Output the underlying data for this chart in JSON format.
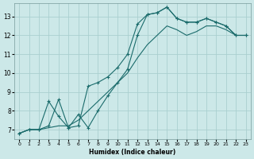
{
  "xlabel": "Humidex (Indice chaleur)",
  "bg_color": "#cce8e8",
  "grid_color": "#aacfcf",
  "line_color": "#1a6b6b",
  "xlim": [
    -0.5,
    23.5
  ],
  "ylim": [
    6.5,
    13.7
  ],
  "xticks": [
    0,
    1,
    2,
    3,
    4,
    5,
    6,
    7,
    8,
    9,
    10,
    11,
    12,
    13,
    14,
    15,
    16,
    17,
    18,
    19,
    20,
    21,
    22,
    23
  ],
  "yticks": [
    7,
    8,
    9,
    10,
    11,
    12,
    13
  ],
  "line1_x": [
    0,
    1,
    2,
    3,
    4,
    5,
    6,
    7,
    8,
    9,
    10,
    11,
    12,
    13,
    14,
    15,
    16,
    17,
    18,
    19,
    20,
    21,
    22,
    23
  ],
  "line1_y": [
    6.8,
    7.0,
    7.0,
    7.2,
    8.6,
    7.1,
    7.2,
    9.3,
    9.5,
    9.8,
    10.3,
    11.0,
    12.6,
    13.1,
    13.2,
    13.5,
    12.9,
    12.7,
    12.7,
    12.9,
    12.7,
    12.5,
    12.0,
    12.0
  ],
  "line2_x": [
    0,
    1,
    2,
    3,
    4,
    5,
    6,
    7,
    8,
    9,
    10,
    11,
    12,
    13,
    14,
    15,
    16,
    17,
    18,
    19,
    20,
    21,
    22,
    23
  ],
  "line2_y": [
    6.8,
    7.0,
    7.0,
    8.5,
    7.7,
    7.1,
    7.8,
    7.1,
    8.0,
    8.8,
    9.5,
    10.2,
    12.0,
    13.1,
    13.2,
    13.5,
    12.9,
    12.7,
    12.7,
    12.9,
    12.7,
    12.5,
    12.0,
    12.0
  ],
  "line3_x": [
    0,
    1,
    2,
    3,
    4,
    5,
    6,
    7,
    8,
    9,
    10,
    11,
    12,
    13,
    14,
    15,
    16,
    17,
    18,
    19,
    20,
    21,
    22,
    23
  ],
  "line3_y": [
    6.8,
    7.0,
    7.0,
    7.1,
    7.2,
    7.2,
    7.5,
    8.0,
    8.5,
    9.0,
    9.5,
    10.0,
    10.8,
    11.5,
    12.0,
    12.5,
    12.3,
    12.0,
    12.2,
    12.5,
    12.5,
    12.3,
    12.0,
    12.0
  ]
}
